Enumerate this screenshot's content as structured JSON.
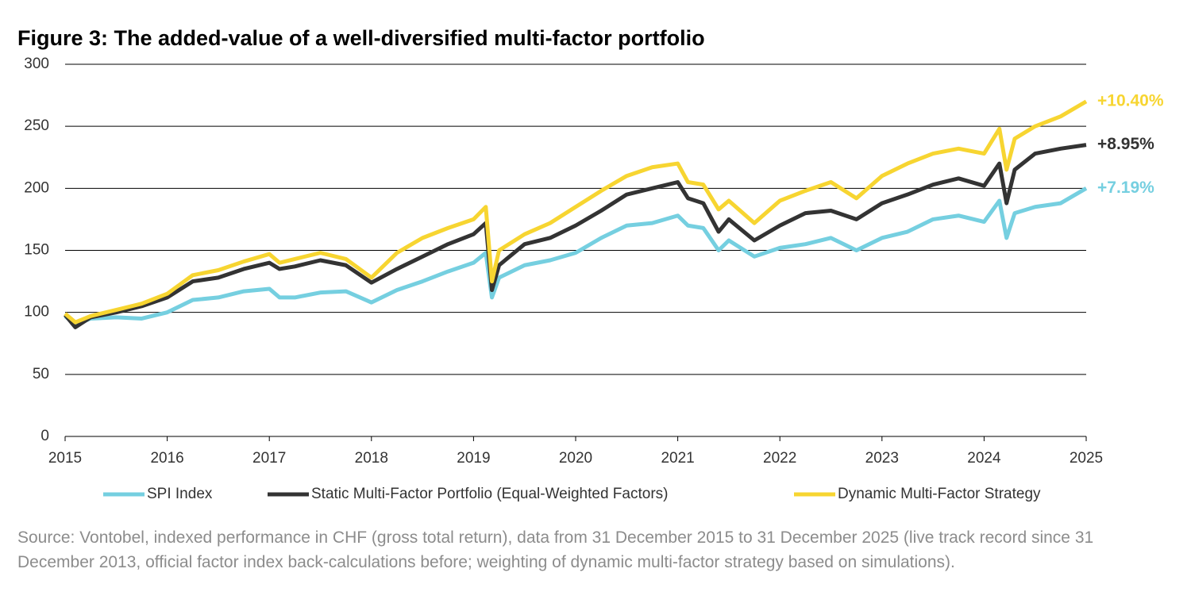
{
  "chart_data": {
    "type": "line",
    "title": "Figure 3: The added-value of a well-diversified multi-factor portfolio",
    "x": [
      2015.0,
      2015.1,
      2015.25,
      2015.5,
      2015.75,
      2016.0,
      2016.25,
      2016.5,
      2016.75,
      2017.0,
      2017.1,
      2017.25,
      2017.5,
      2017.75,
      2018.0,
      2018.25,
      2018.5,
      2018.75,
      2019.0,
      2019.12,
      2019.18,
      2019.25,
      2019.5,
      2019.75,
      2020.0,
      2020.25,
      2020.5,
      2020.75,
      2021.0,
      2021.1,
      2021.25,
      2021.4,
      2021.5,
      2021.75,
      2022.0,
      2022.25,
      2022.5,
      2022.75,
      2023.0,
      2023.25,
      2023.5,
      2023.75,
      2024.0,
      2024.15,
      2024.22,
      2024.3,
      2024.5,
      2024.75,
      2025.0
    ],
    "series": [
      {
        "name": "SPI Index",
        "color": "#75cfe0",
        "end_label": "+7.19%",
        "values": [
          97,
          90,
          95,
          96,
          95,
          100,
          110,
          112,
          117,
          119,
          112,
          112,
          116,
          117,
          108,
          118,
          125,
          133,
          140,
          148,
          112,
          128,
          138,
          142,
          148,
          160,
          170,
          172,
          178,
          170,
          168,
          150,
          158,
          145,
          152,
          155,
          160,
          150,
          160,
          165,
          175,
          178,
          173,
          190,
          160,
          180,
          185,
          188,
          200
        ]
      },
      {
        "name": "Static Multi-Factor Portfolio (Equal-Weighted Factors)",
        "color": "#333333",
        "end_label": "+8.95%",
        "values": [
          98,
          88,
          96,
          100,
          105,
          112,
          125,
          128,
          135,
          140,
          135,
          137,
          142,
          138,
          124,
          135,
          145,
          155,
          163,
          172,
          118,
          138,
          155,
          160,
          170,
          182,
          195,
          200,
          205,
          192,
          188,
          165,
          175,
          158,
          170,
          180,
          182,
          175,
          188,
          195,
          203,
          208,
          202,
          220,
          188,
          215,
          228,
          232,
          235
        ]
      },
      {
        "name": "Dynamic Multi-Factor Strategy",
        "color": "#f7d531",
        "end_label": "+10.40%",
        "values": [
          99,
          92,
          97,
          102,
          107,
          115,
          130,
          134,
          141,
          147,
          140,
          143,
          148,
          143,
          128,
          148,
          160,
          168,
          175,
          185,
          125,
          150,
          163,
          172,
          185,
          198,
          210,
          217,
          220,
          205,
          203,
          183,
          190,
          172,
          190,
          198,
          205,
          192,
          210,
          220,
          228,
          232,
          228,
          248,
          215,
          240,
          250,
          258,
          270
        ]
      }
    ],
    "xlim": [
      2015,
      2025
    ],
    "xticks": [
      2015,
      2016,
      2017,
      2018,
      2019,
      2020,
      2021,
      2022,
      2023,
      2024,
      2025
    ],
    "ylim": [
      0,
      300
    ],
    "yticks": [
      0,
      50,
      100,
      150,
      200,
      250,
      300
    ],
    "grid": true,
    "legend": "bottom",
    "source": "Source: Vontobel, indexed performance in CHF (gross total return), data from 31 December 2015 to 31 December 2025 (live track record since 31 December 2013, official factor index back-calculations before; weighting of dynamic multi-factor strategy based on simulations)."
  }
}
